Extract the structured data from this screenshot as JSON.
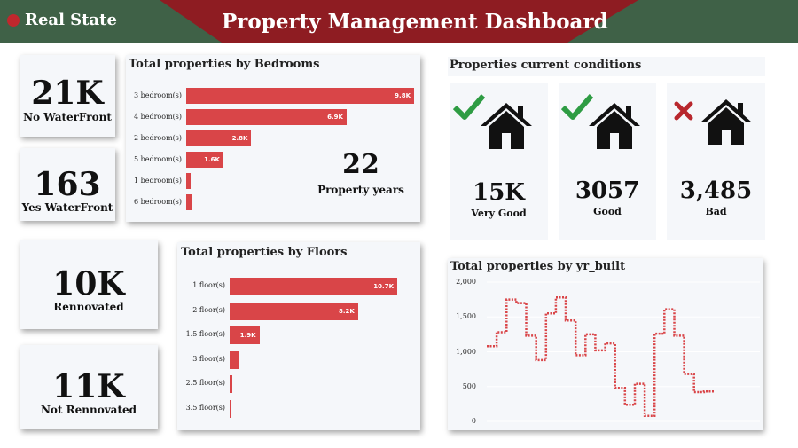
{
  "header": {
    "brand": "Real State",
    "title": "Property Management Dashboard",
    "colors": {
      "green": "#3f6147",
      "red": "#8e1c22",
      "accent": "#d94548"
    }
  },
  "kpis": {
    "no_waterfront": {
      "value": "21K",
      "label": "No WaterFront"
    },
    "yes_waterfront": {
      "value": "163",
      "label": "Yes WaterFront"
    },
    "renovated": {
      "value": "10K",
      "label": "Rennovated"
    },
    "not_renovated": {
      "value": "11K",
      "label": "Not Rennovated"
    },
    "property_years": {
      "value": "22",
      "label": "Property years"
    }
  },
  "conditions": {
    "title": "Properties current conditions",
    "items": [
      {
        "value": "15K",
        "label": "Very Good",
        "mark": "check-icon"
      },
      {
        "value": "3057",
        "label": "Good",
        "mark": "check-icon"
      },
      {
        "value": "3,485",
        "label": "Bad",
        "mark": "cross-icon"
      }
    ]
  },
  "chart_data": [
    {
      "type": "bar",
      "orientation": "horizontal",
      "title": "Total properties by Bedrooms",
      "categories": [
        "3 bedroom(s)",
        "4 bedroom(s)",
        "2 bedroom(s)",
        "5 bedroom(s)",
        "1 bedroom(s)",
        "6 bedroom(s)"
      ],
      "values": [
        9800,
        6900,
        2800,
        1600,
        200,
        270
      ],
      "data_labels": [
        "9.8K",
        "6.9K",
        "2.8K",
        "1.6K",
        "",
        ""
      ],
      "xlim": [
        0,
        9800
      ]
    },
    {
      "type": "bar",
      "orientation": "horizontal",
      "title": "Total properties by Floors",
      "categories": [
        "1 floor(s)",
        "2 floor(s)",
        "1.5 floor(s)",
        "3 floor(s)",
        "2.5 floor(s)",
        "3.5 floor(s)"
      ],
      "values": [
        10700,
        8200,
        1900,
        600,
        160,
        8
      ],
      "data_labels": [
        "10.7K",
        "8.2K",
        "1.9K",
        "",
        "",
        ""
      ],
      "xlim": [
        0,
        10700
      ]
    },
    {
      "type": "line",
      "title": "Total properties by yr_built",
      "style": "step-dashed",
      "ylim": [
        0,
        2000
      ],
      "yticks": [
        "0",
        "500",
        "1,000",
        "1,500",
        "2,000"
      ],
      "y": [
        1080,
        1280,
        1750,
        1700,
        1230,
        880,
        1550,
        1780,
        1450,
        950,
        1250,
        1020,
        1120,
        480,
        240,
        540,
        80,
        1260,
        1610,
        1230,
        680,
        420,
        430
      ]
    }
  ]
}
